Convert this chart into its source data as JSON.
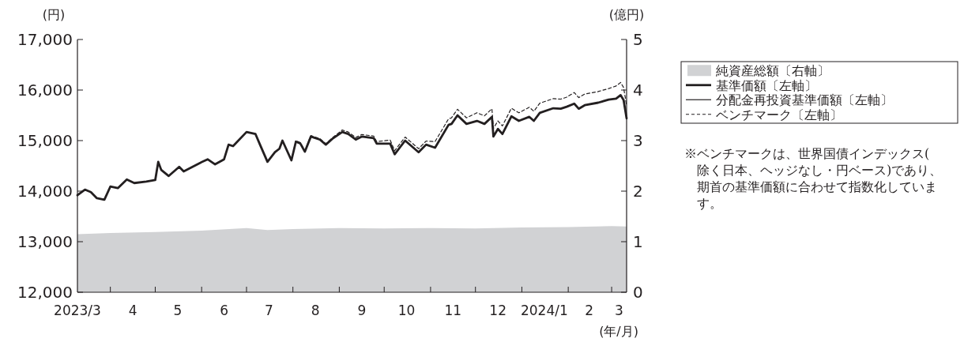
{
  "chart_data": {
    "type": "line",
    "xlabel": "(年/月)",
    "ylabel": "(円)",
    "y2label": "(億円)",
    "legend": "top right",
    "grid": false,
    "xlim": [
      "2023-03-10",
      "2024-03-11"
    ],
    "xticks": [
      {
        "value": "2023-03-10",
        "label": "2023/3"
      },
      {
        "value": "2023-04-16",
        "label": "4"
      },
      {
        "value": "2023-05-16",
        "label": "5"
      },
      {
        "value": "2023-06-16",
        "label": "6"
      },
      {
        "value": "2023-07-16",
        "label": "7"
      },
      {
        "value": "2023-08-16",
        "label": "8"
      },
      {
        "value": "2023-09-16",
        "label": "9"
      },
      {
        "value": "2023-10-16",
        "label": "10"
      },
      {
        "value": "2023-11-16",
        "label": "11"
      },
      {
        "value": "2023-12-16",
        "label": "12"
      },
      {
        "value": "2024-01-16",
        "label": "2024/1"
      },
      {
        "value": "2024-02-15",
        "label": "2"
      },
      {
        "value": "2024-03-06",
        "label": "3"
      },
      {
        "value": "2023-04-01",
        "label": null
      },
      {
        "value": "2023-05-01",
        "label": null
      },
      {
        "value": "2023-06-01",
        "label": null
      },
      {
        "value": "2023-07-01",
        "label": null
      },
      {
        "value": "2023-08-01",
        "label": null
      },
      {
        "value": "2023-09-01",
        "label": null
      },
      {
        "value": "2023-10-01",
        "label": null
      },
      {
        "value": "2023-11-01",
        "label": null
      },
      {
        "value": "2023-12-01",
        "label": null
      },
      {
        "value": "2024-01-01",
        "label": null
      },
      {
        "value": "2024-02-01",
        "label": null
      },
      {
        "value": "2024-03-01",
        "label": null
      }
    ],
    "ylim": [
      12000,
      17000
    ],
    "yticks": [
      {
        "value": 12000,
        "label": "12,000"
      },
      {
        "value": 13000,
        "label": "13,000"
      },
      {
        "value": 14000,
        "label": "14,000"
      },
      {
        "value": 15000,
        "label": "15,000"
      },
      {
        "value": 16000,
        "label": "16,000"
      },
      {
        "value": 17000,
        "label": "17,000"
      }
    ],
    "y2lim": [
      0,
      5
    ],
    "y2ticks": [
      0,
      1,
      2,
      3,
      4,
      5
    ],
    "annotations": [
      "※ベンチマークは、世界国債インデックス(除く日本、ヘッジなし・円ベース)であり、期首の基準価額に合わせて指数化しています。"
    ],
    "x": [
      "2023-03-10",
      "2023-03-15",
      "2023-03-19",
      "2023-03-23",
      "2023-03-28",
      "2023-04-01",
      "2023-04-06",
      "2023-04-12",
      "2023-04-17",
      "2023-04-25",
      "2023-05-01",
      "2023-05-03",
      "2023-05-05",
      "2023-05-10",
      "2023-05-17",
      "2023-05-20",
      "2023-05-31",
      "2023-06-05",
      "2023-06-10",
      "2023-06-16",
      "2023-06-19",
      "2023-06-22",
      "2023-07-01",
      "2023-07-07",
      "2023-07-10",
      "2023-07-15",
      "2023-07-20",
      "2023-07-23",
      "2023-07-25",
      "2023-07-31",
      "2023-08-03",
      "2023-08-06",
      "2023-08-09",
      "2023-08-13",
      "2023-08-19",
      "2023-08-23",
      "2023-08-28",
      "2023-09-03",
      "2023-09-07",
      "2023-09-12",
      "2023-09-16",
      "2023-09-24",
      "2023-09-26",
      "2023-10-05",
      "2023-10-08",
      "2023-10-15",
      "2023-10-24",
      "2023-10-29",
      "2023-11-04",
      "2023-11-13",
      "2023-11-15",
      "2023-11-19",
      "2023-11-25",
      "2023-12-02",
      "2023-12-07",
      "2023-12-12",
      "2023-12-13",
      "2023-12-16",
      "2023-12-19",
      "2023-12-25",
      "2023-12-30",
      "2024-01-06",
      "2024-01-09",
      "2024-01-13",
      "2024-01-22",
      "2024-01-27",
      "2024-01-31",
      "2024-02-05",
      "2024-02-08",
      "2024-02-12",
      "2024-02-21",
      "2024-02-28",
      "2024-03-04",
      "2024-03-07",
      "2024-03-09",
      "2024-03-11"
    ],
    "series": [
      {
        "name": "純資産総額〔右軸〕",
        "type": "area",
        "axis": "y2",
        "color": "#d1d2d4",
        "x": [
          "2023-03-10",
          "2023-04-01",
          "2023-05-01",
          "2023-06-01",
          "2023-07-01",
          "2023-07-15",
          "2023-08-01",
          "2023-09-01",
          "2023-10-01",
          "2023-11-01",
          "2023-12-01",
          "2024-01-01",
          "2024-02-01",
          "2024-03-01",
          "2024-03-11"
        ],
        "values": [
          1.15,
          1.17,
          1.19,
          1.22,
          1.27,
          1.23,
          1.25,
          1.27,
          1.26,
          1.27,
          1.26,
          1.28,
          1.29,
          1.31,
          1.3
        ]
      },
      {
        "name": "基準価額〔左軸〕",
        "color": "#231f20",
        "line_style": "solid",
        "values": [
          13920,
          14030,
          13980,
          13860,
          13830,
          14090,
          14060,
          14230,
          14160,
          14190,
          14220,
          14580,
          14420,
          14300,
          14480,
          14390,
          14560,
          14630,
          14530,
          14630,
          14920,
          14890,
          15170,
          15130,
          14920,
          14580,
          14770,
          14840,
          15000,
          14610,
          14980,
          14940,
          14780,
          15080,
          15020,
          14920,
          15050,
          15170,
          15130,
          15020,
          15080,
          15050,
          14940,
          14940,
          14730,
          15000,
          14770,
          14920,
          14860,
          15310,
          15330,
          15500,
          15330,
          15390,
          15330,
          15470,
          15080,
          15230,
          15130,
          15480,
          15390,
          15470,
          15390,
          15550,
          15640,
          15630,
          15670,
          15730,
          15630,
          15700,
          15750,
          15810,
          15830,
          15900,
          15800,
          15440
        ]
      },
      {
        "name": "分配金再投資基準価額〔左軸〕",
        "color": "#231f20",
        "line_style": "solid",
        "values": [
          null,
          null,
          null,
          null,
          null,
          null,
          null,
          null,
          null,
          null,
          null,
          null,
          null,
          null,
          null,
          null,
          null,
          null,
          null,
          null,
          null,
          null,
          null,
          null,
          null,
          null,
          null,
          null,
          null,
          null,
          null,
          null,
          null,
          null,
          null,
          null,
          null,
          null,
          null,
          null,
          null,
          null,
          null,
          null,
          null,
          null,
          null,
          null,
          null,
          null,
          null,
          null,
          null,
          null,
          null,
          null,
          null,
          null,
          null,
          null,
          null,
          null,
          null,
          null,
          null,
          null,
          null,
          null,
          null,
          null,
          null,
          null,
          null,
          null,
          null,
          null
        ]
      },
      {
        "name": "ベンチマーク〔左軸〕",
        "color": "#231f20",
        "line_style": "dashed",
        "values": [
          13920,
          14030,
          13980,
          13860,
          13830,
          14090,
          14060,
          14230,
          14160,
          14190,
          14220,
          14580,
          14420,
          14300,
          14480,
          14390,
          14560,
          14630,
          14530,
          14630,
          14920,
          14890,
          15170,
          15130,
          14920,
          14580,
          14770,
          14840,
          15000,
          14610,
          15000,
          14960,
          14800,
          15100,
          15040,
          14940,
          15070,
          15210,
          15170,
          15060,
          15120,
          15090,
          14980,
          15010,
          14800,
          15070,
          14840,
          14990,
          14980,
          15430,
          15450,
          15620,
          15450,
          15550,
          15490,
          15630,
          15240,
          15390,
          15290,
          15640,
          15550,
          15660,
          15580,
          15740,
          15830,
          15820,
          15860,
          15950,
          15850,
          15920,
          15970,
          16030,
          16080,
          16150,
          16050,
          15690
        ]
      }
    ]
  }
}
